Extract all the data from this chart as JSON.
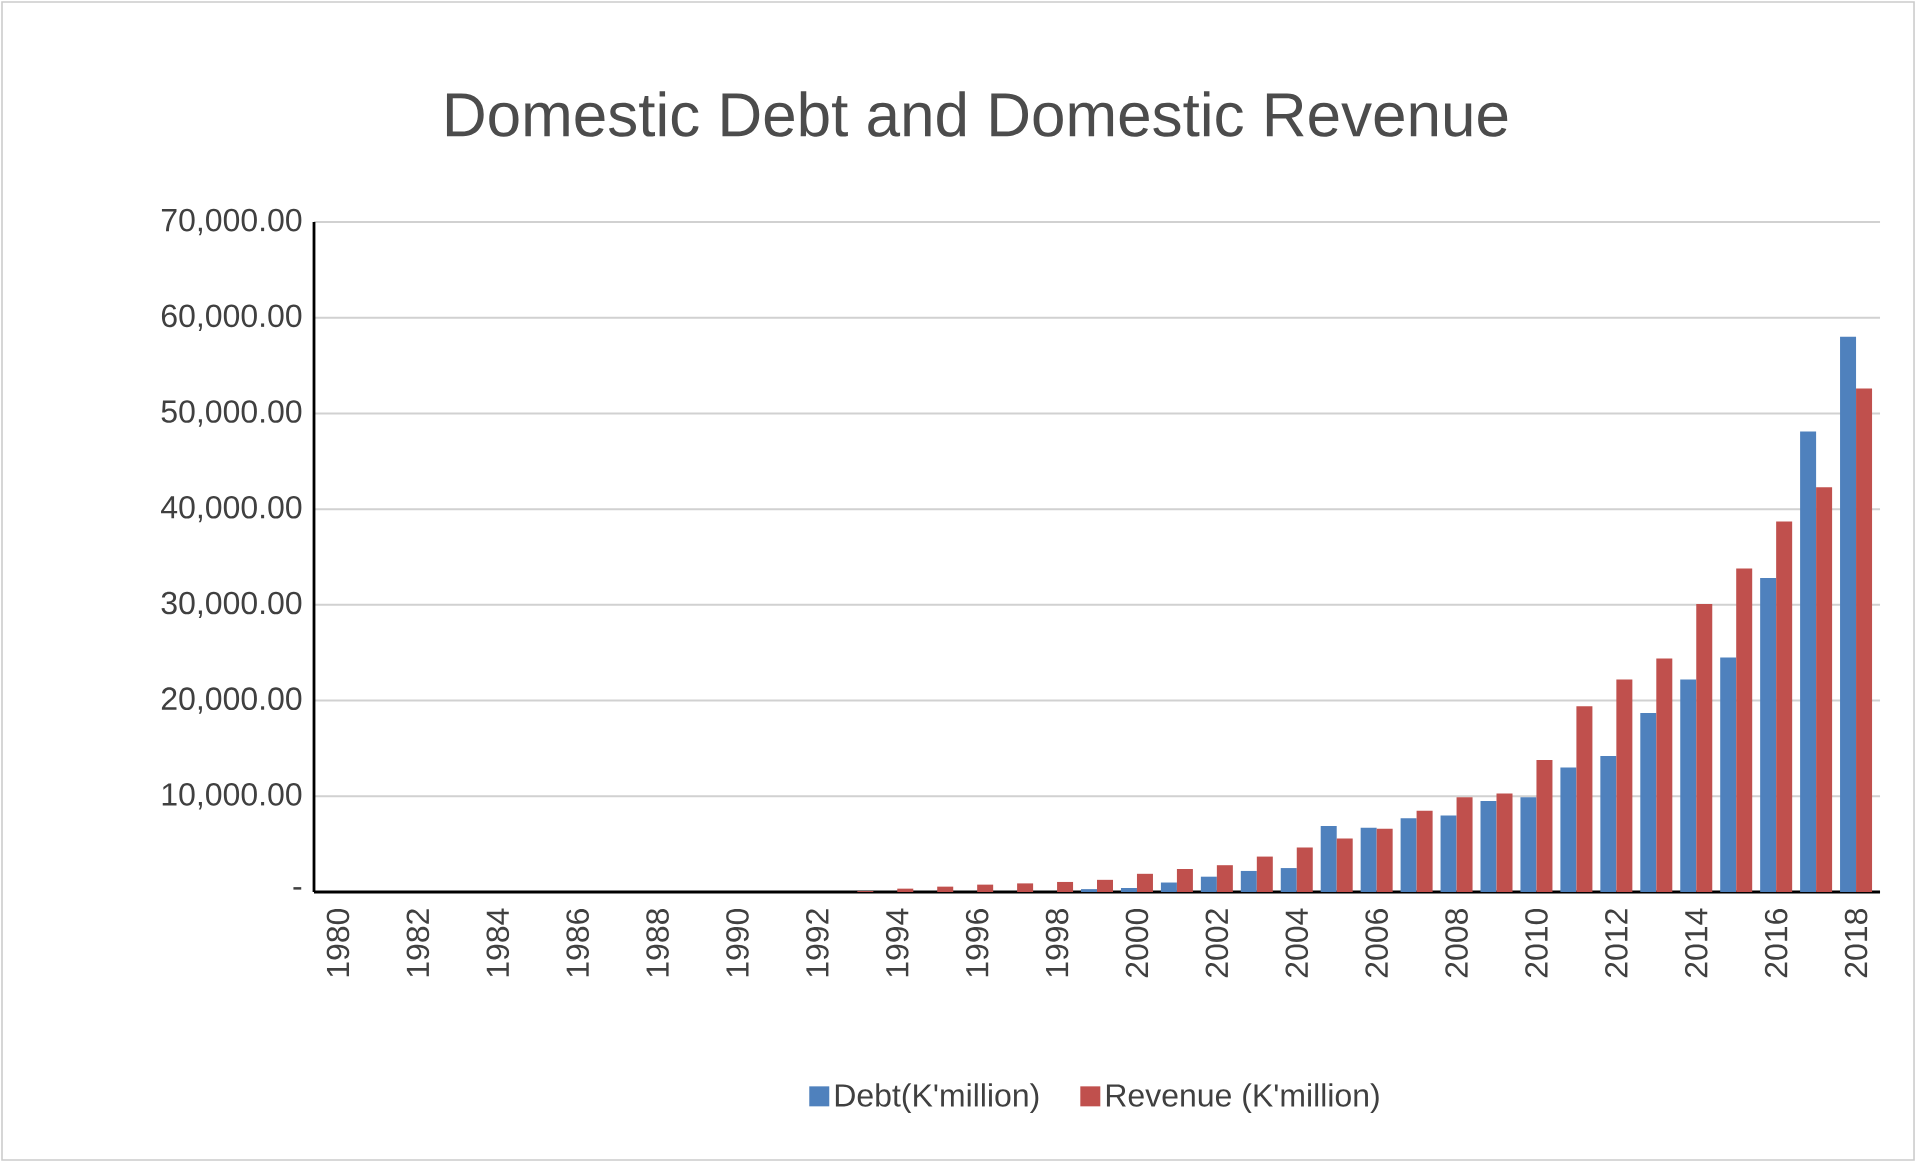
{
  "chart_data": {
    "type": "bar",
    "title": "Domestic Debt and Domestic Revenue",
    "categories": [
      "1980",
      null,
      "1982",
      null,
      "1984",
      null,
      "1986",
      null,
      "1988",
      null,
      "1990",
      null,
      "1992",
      null,
      "1994",
      null,
      "1996",
      null,
      "1998",
      null,
      "2000",
      null,
      "2002",
      null,
      "2004",
      null,
      "2006",
      null,
      "2008",
      null,
      "2010",
      null,
      "2012",
      null,
      "2014",
      null,
      "2016",
      null,
      "2018"
    ],
    "series": [
      {
        "name": "Debt(K'million)",
        "color": "#4f81bd",
        "values": [
          0,
          0,
          0,
          0,
          0,
          0,
          0,
          0,
          0,
          0,
          0,
          0,
          0,
          0,
          0,
          0,
          0,
          0,
          0,
          300,
          420,
          990,
          1600,
          2200,
          2500,
          6900,
          6700,
          7700,
          8000,
          9500,
          9900,
          13000,
          14200,
          18700,
          22200,
          24500,
          32800,
          48100,
          58000
        ]
      },
      {
        "name": "Revenue (K'million)",
        "color": "#c0504d",
        "values": [
          0,
          0,
          0,
          0,
          0,
          0,
          0,
          0,
          0,
          0,
          0,
          0,
          0,
          100,
          350,
          560,
          770,
          900,
          1050,
          1270,
          1900,
          2400,
          2800,
          3700,
          4650,
          5600,
          6600,
          8500,
          9900,
          10300,
          13800,
          19400,
          22200,
          24400,
          30100,
          33800,
          38700,
          42300,
          52600
        ]
      }
    ],
    "ylim": [
      0,
      70000
    ],
    "yticks": [
      {
        "value": 0,
        "label": "-"
      },
      {
        "value": 10000,
        "label": "10,000.00"
      },
      {
        "value": 20000,
        "label": "20,000.00"
      },
      {
        "value": 30000,
        "label": "30,000.00"
      },
      {
        "value": 40000,
        "label": "40,000.00"
      },
      {
        "value": 50000,
        "label": "50,000.00"
      },
      {
        "value": 60000,
        "label": "60,000.00"
      },
      {
        "value": 70000,
        "label": "70,000.00"
      }
    ],
    "grid": "y",
    "legend": "bottom"
  }
}
